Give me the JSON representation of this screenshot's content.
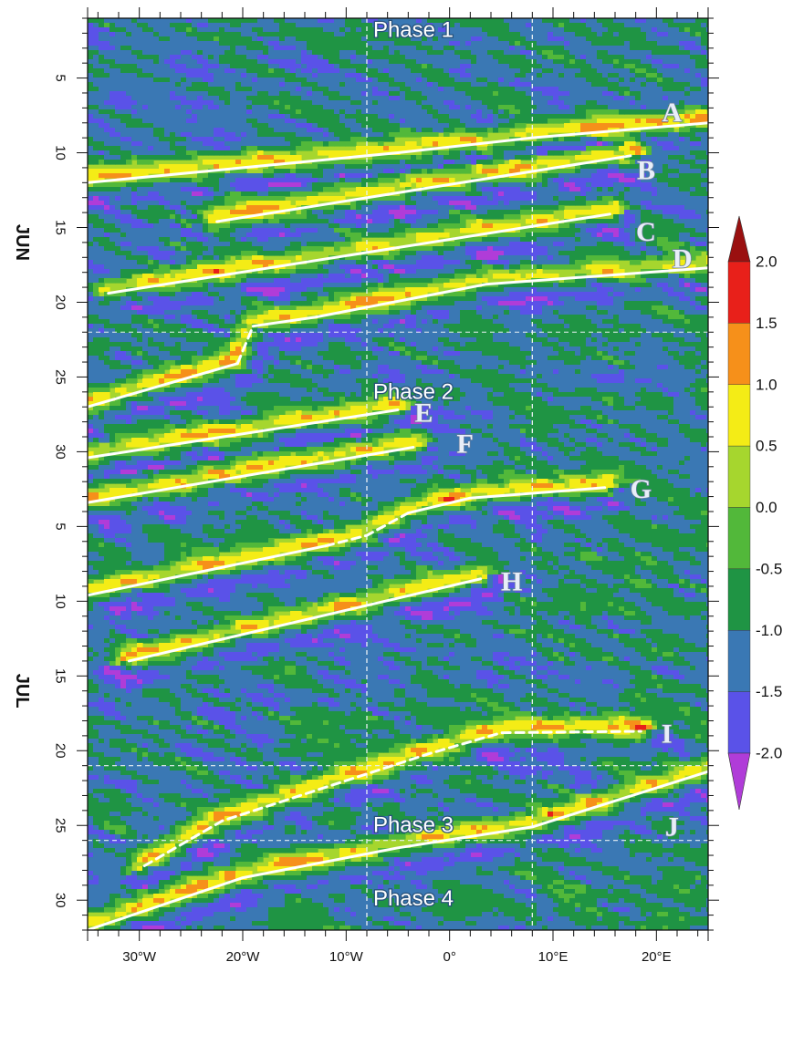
{
  "chart_data": {
    "type": "heatmap",
    "title": "",
    "xlabel": "",
    "ylabel": "",
    "x_range_deg": [
      -35,
      25
    ],
    "x_ticks": [
      {
        "value": -30,
        "label": "30°W"
      },
      {
        "value": -20,
        "label": "20°W"
      },
      {
        "value": -10,
        "label": "10°W"
      },
      {
        "value": 0,
        "label": "0°"
      },
      {
        "value": 10,
        "label": "10°E"
      },
      {
        "value": 20,
        "label": "20°E"
      }
    ],
    "y_axis": {
      "direction": "time increases downward",
      "range_days": [
        1,
        62
      ],
      "months": [
        {
          "label": "JUN",
          "start_day": 1
        },
        {
          "label": "JUL",
          "start_day": 31
        }
      ],
      "ticks": [
        {
          "day": 5,
          "label": "5"
        },
        {
          "day": 10,
          "label": "10"
        },
        {
          "day": 15,
          "label": "15"
        },
        {
          "day": 20,
          "label": "20"
        },
        {
          "day": 25,
          "label": "25"
        },
        {
          "day": 30,
          "label": "30"
        },
        {
          "day": 35,
          "label": "5"
        },
        {
          "day": 40,
          "label": "10"
        },
        {
          "day": 45,
          "label": "15"
        },
        {
          "day": 50,
          "label": "20"
        },
        {
          "day": 55,
          "label": "25"
        },
        {
          "day": 60,
          "label": "30"
        }
      ]
    },
    "reference_lines": {
      "vertical_lon": [
        -8,
        8
      ],
      "horizontal_day": [
        22,
        51,
        56
      ]
    },
    "contour_label": "0.5",
    "colorbar": {
      "levels": [
        "-2.0",
        "-1.5",
        "-1.0",
        "-0.5",
        "0.0",
        "0.5",
        "1.0",
        "1.5",
        "2.0"
      ],
      "colors": [
        "#b03cd8",
        "#5a52e8",
        "#3a78b4",
        "#1f9444",
        "#52b83a",
        "#a6d62e",
        "#f4ec16",
        "#f6901a",
        "#e8201a",
        "#9a1010"
      ],
      "extend": "both"
    },
    "phases": [
      {
        "label": "Phase 1",
        "lon": -3.5,
        "day": 1.8
      },
      {
        "label": "Phase 2",
        "lon": -3.5,
        "day": 26.0
      },
      {
        "label": "Phase 3",
        "lon": -3.5,
        "day": 55.0
      },
      {
        "label": "Phase 4",
        "lon": -3.5,
        "day": 59.9
      }
    ],
    "events": [
      {
        "label": "A",
        "label_at": [
          21.5,
          7.3
        ],
        "style": "solid",
        "path": [
          [
            -35,
            12.0
          ],
          [
            -5,
            10.0
          ],
          [
            8,
            9.0
          ],
          [
            25,
            8.0
          ]
        ]
      },
      {
        "label": "B",
        "label_at": [
          19.0,
          11.2
        ],
        "style": "solid",
        "path": [
          [
            -22.5,
            14.6
          ],
          [
            17.5,
            10.2
          ]
        ]
      },
      {
        "label": "C",
        "label_at": [
          19.0,
          15.3
        ],
        "style": "solid",
        "path": [
          [
            -33,
            19.4
          ],
          [
            15.5,
            14.1
          ]
        ]
      },
      {
        "label": "D",
        "label_at": [
          22.5,
          17.1
        ],
        "style": "solid",
        "path": [
          [
            -19,
            21.6
          ],
          [
            -13,
            21.0
          ],
          [
            3.5,
            18.8
          ],
          [
            25,
            17.7
          ]
        ]
      },
      {
        "label": "D",
        "label_at": null,
        "style": "solid",
        "path": [
          [
            -35,
            27.0
          ],
          [
            -20.5,
            24.1
          ]
        ]
      },
      {
        "label": "D",
        "label_at": null,
        "style": "dashed",
        "path": [
          [
            -20.5,
            24.1
          ],
          [
            -19,
            21.6
          ]
        ]
      },
      {
        "label": "E",
        "label_at": [
          -2.5,
          27.4
        ],
        "style": "solid",
        "path": [
          [
            -35,
            30.4
          ],
          [
            -5,
            27.2
          ]
        ]
      },
      {
        "label": "F",
        "label_at": [
          1.5,
          29.5
        ],
        "style": "solid",
        "path": [
          [
            -35,
            33.4
          ],
          [
            -3.5,
            29.7
          ]
        ]
      },
      {
        "label": "G",
        "label_at": [
          18.5,
          32.5
        ],
        "style": "solid",
        "path": [
          [
            -35,
            39.6
          ],
          [
            -12,
            36.3
          ]
        ]
      },
      {
        "label": "G",
        "label_at": null,
        "style": "dashed",
        "path": [
          [
            -12,
            36.3
          ],
          [
            -8,
            35.6
          ],
          [
            -4,
            34.1
          ]
        ]
      },
      {
        "label": "G",
        "label_at": null,
        "style": "solid",
        "path": [
          [
            -4,
            34.1
          ],
          [
            2,
            33.1
          ],
          [
            15,
            32.4
          ]
        ]
      },
      {
        "label": "H",
        "label_at": [
          6.0,
          38.7
        ],
        "style": "solid",
        "path": [
          [
            -31,
            44.0
          ],
          [
            3,
            38.5
          ]
        ]
      },
      {
        "label": "I",
        "label_at": [
          21.0,
          48.9
        ],
        "style": "dashed",
        "path": [
          [
            -29.5,
            57.7
          ],
          [
            -22,
            54.7
          ],
          [
            -2,
            50.2
          ],
          [
            5,
            48.8
          ],
          [
            18.5,
            48.7
          ]
        ]
      },
      {
        "label": "J",
        "label_at": [
          21.5,
          55.1
        ],
        "style": "solid",
        "path": [
          [
            -35,
            62.0
          ],
          [
            -20,
            58.5
          ],
          [
            -5,
            56.5
          ],
          [
            8,
            55.1
          ],
          [
            25,
            51.4
          ]
        ]
      }
    ]
  }
}
